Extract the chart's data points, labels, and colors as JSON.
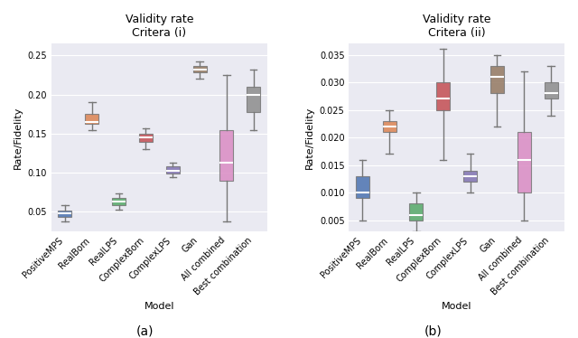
{
  "title_a": "Validity rate\nCritera (i)",
  "title_b": "Validity rate\nCritera (ii)",
  "xlabel": "Model",
  "ylabel": "Rate/Fidelity",
  "label_a": "(a)",
  "label_b": "(b)",
  "categories": [
    "PositiveMPS",
    "RealBorn",
    "RealLPS",
    "ComplexBorn",
    "ComplexLPS",
    "Gan",
    "All combined",
    "Best combination"
  ],
  "colors": [
    "#4c72b0",
    "#dd8452",
    "#55a868",
    "#c44e52",
    "#8172b2",
    "#937860",
    "#da8bc3",
    "#8c8c8c"
  ],
  "background_color": "#eaeaf2",
  "plot_a": {
    "whislo": [
      0.038,
      0.155,
      0.053,
      0.13,
      0.094,
      0.22,
      0.038,
      0.155
    ],
    "q1": [
      0.044,
      0.163,
      0.059,
      0.139,
      0.099,
      0.228,
      0.09,
      0.178
    ],
    "med": [
      0.048,
      0.165,
      0.063,
      0.145,
      0.102,
      0.232,
      0.113,
      0.2
    ],
    "mean": [
      0.048,
      0.168,
      0.063,
      0.145,
      0.102,
      0.232,
      0.115,
      0.2
    ],
    "q3": [
      0.052,
      0.175,
      0.068,
      0.15,
      0.108,
      0.236,
      0.155,
      0.21
    ],
    "whishi": [
      0.058,
      0.19,
      0.074,
      0.157,
      0.113,
      0.242,
      0.225,
      0.232
    ],
    "ylim": [
      0.025,
      0.265
    ]
  },
  "plot_b": {
    "whislo": [
      0.005,
      0.017,
      0.003,
      0.016,
      0.01,
      0.022,
      0.005,
      0.024
    ],
    "q1": [
      0.009,
      0.021,
      0.005,
      0.025,
      0.012,
      0.028,
      0.01,
      0.027
    ],
    "med": [
      0.01,
      0.022,
      0.006,
      0.027,
      0.013,
      0.031,
      0.016,
      0.028
    ],
    "mean": [
      0.01,
      0.022,
      0.006,
      0.027,
      0.013,
      0.031,
      0.016,
      0.028
    ],
    "q3": [
      0.013,
      0.023,
      0.008,
      0.03,
      0.014,
      0.033,
      0.021,
      0.03
    ],
    "whishi": [
      0.016,
      0.025,
      0.01,
      0.036,
      0.017,
      0.035,
      0.032,
      0.033
    ],
    "ylim": [
      0.003,
      0.037
    ]
  }
}
